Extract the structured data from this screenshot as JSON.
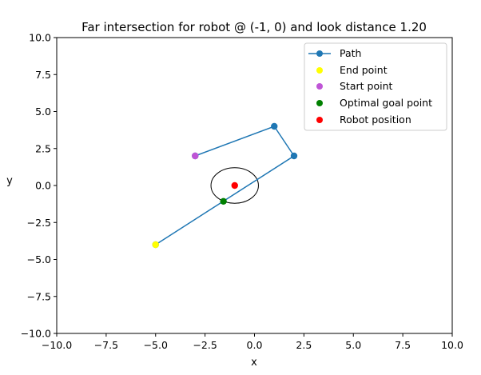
{
  "chart_data": {
    "type": "line",
    "title": "Far intersection for robot @ (-1, 0) and look distance 1.20",
    "xlabel": "x",
    "ylabel": "y",
    "xlim": [
      -10,
      10
    ],
    "ylim": [
      -10,
      10
    ],
    "xticks": [
      -10.0,
      -7.5,
      -5.0,
      -2.5,
      0.0,
      2.5,
      5.0,
      7.5,
      10.0
    ],
    "yticks": [
      -10.0,
      -7.5,
      -5.0,
      -2.5,
      0.0,
      2.5,
      5.0,
      7.5,
      10.0
    ],
    "xtick_labels": [
      "−10.0",
      "−7.5",
      "−5.0",
      "−2.5",
      "0.0",
      "2.5",
      "5.0",
      "7.5",
      "10.0"
    ],
    "ytick_labels": [
      "−10.0",
      "−7.5",
      "−5.0",
      "−2.5",
      "0.0",
      "2.5",
      "5.0",
      "7.5",
      "10.0"
    ],
    "grid": false,
    "legend_position": "top-right",
    "path": {
      "name": "Path",
      "color": "#1f77b4",
      "x": [
        -3,
        1,
        2,
        -5
      ],
      "y": [
        2,
        4,
        2,
        -4
      ]
    },
    "end_point": {
      "name": "End point",
      "color": "#ffff00",
      "x": -5,
      "y": -4
    },
    "start_point": {
      "name": "Start point",
      "color": "#bf55d6",
      "x": -3,
      "y": 2
    },
    "goal_point": {
      "name": "Optimal goal point",
      "color": "#008000",
      "x": -1.57,
      "y": -1.07
    },
    "robot": {
      "name": "Robot position",
      "color": "#ff0000",
      "x": -1,
      "y": 0
    },
    "look_circle": {
      "center_x": -1,
      "center_y": 0,
      "radius": 1.2,
      "color": "#000000"
    }
  }
}
